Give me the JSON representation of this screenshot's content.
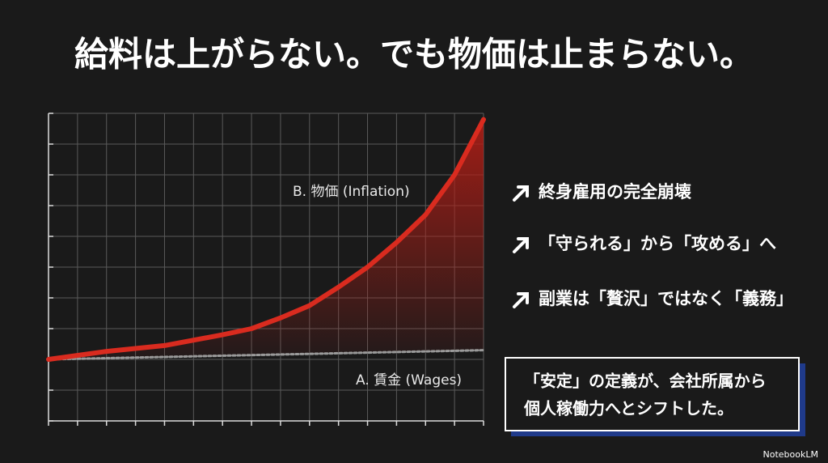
{
  "title": "給料は上がらない。でも物価は止まらない。",
  "chart_data": {
    "type": "line",
    "x": [
      0,
      2,
      4,
      6,
      7,
      8,
      9,
      10,
      11,
      12,
      13,
      14,
      15
    ],
    "series": [
      {
        "name": "B. 物価 (Inflation)",
        "color": "#d92b1f",
        "values": [
          2,
          2.26,
          2.45,
          2.8,
          3.0,
          3.35,
          3.75,
          4.35,
          5.0,
          5.8,
          6.7,
          8.0,
          9.8
        ]
      },
      {
        "name": "A. 賃金 (Wages)",
        "color": "#9a9a9a",
        "values": [
          2,
          2.04,
          2.08,
          2.12,
          2.14,
          2.16,
          2.18,
          2.2,
          2.22,
          2.24,
          2.26,
          2.28,
          2.3
        ]
      }
    ],
    "xlim": [
      0,
      15
    ],
    "ylim": [
      0,
      10
    ],
    "xticks": [
      0,
      1,
      2,
      3,
      4,
      5,
      6,
      7,
      8,
      9,
      10,
      11,
      12,
      13,
      14,
      15
    ],
    "yticks": [
      0,
      1,
      2,
      3,
      4,
      5,
      6,
      7,
      8,
      9,
      10
    ],
    "grid": true
  },
  "bullets": [
    "終身雇用の完全崩壊",
    "「守られる」から「攻める」へ",
    "副業は「贅沢」ではなく「義務」"
  ],
  "callout": {
    "lines": [
      "「安定」の定義が、会社所属から",
      "個人稼働力へとシフトした。"
    ]
  },
  "brand": "NotebookLM"
}
